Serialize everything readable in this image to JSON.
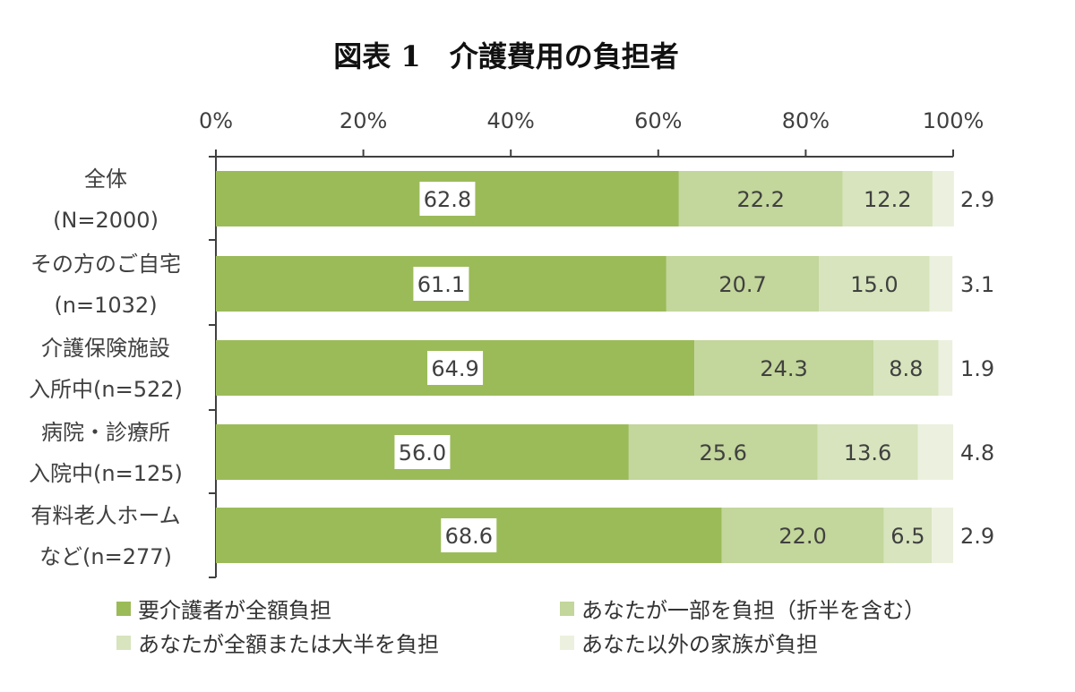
{
  "title": "図表 1　介護費用の負担者",
  "chart_data": {
    "type": "bar",
    "orientation": "horizontal",
    "stacked": true,
    "title": "図表 1　介護費用の負担者",
    "xlim": [
      0,
      100
    ],
    "x_ticks": [
      "0%",
      "20%",
      "40%",
      "60%",
      "80%",
      "100%"
    ],
    "x_tick_values": [
      0,
      20,
      40,
      60,
      80,
      100
    ],
    "x_axis_position": "top",
    "grid": false,
    "legend_position": "bottom",
    "categories": [
      {
        "line1": "全体",
        "line2": "(N=2000)"
      },
      {
        "line1": "その方のご自宅",
        "line2": "(n=1032)"
      },
      {
        "line1": "介護保険施設",
        "line2": "入所中(n=522)"
      },
      {
        "line1": "病院・診療所",
        "line2": "入院中(n=125)"
      },
      {
        "line1": "有料老人ホーム",
        "line2": "など(n=277)"
      }
    ],
    "series": [
      {
        "name": "要介護者が全額負担",
        "color": "#9bbb59",
        "values": [
          62.8,
          61.1,
          64.9,
          56.0,
          68.6
        ],
        "labels": [
          "62.8",
          "61.1",
          "64.9",
          "56.0",
          "68.6"
        ]
      },
      {
        "name": "あなたが一部を負担（折半を含む）",
        "color": "#c3d69b",
        "values": [
          22.2,
          20.7,
          24.3,
          25.6,
          22.0
        ],
        "labels": [
          "22.2",
          "20.7",
          "24.3",
          "25.6",
          "22.0"
        ]
      },
      {
        "name": "あなたが全額または大半を負担",
        "color": "#d7e4bd",
        "values": [
          12.2,
          15.0,
          8.8,
          13.6,
          6.5
        ],
        "labels": [
          "12.2",
          "15.0",
          "8.8",
          "13.6",
          "6.5"
        ]
      },
      {
        "name": "あなた以外の家族が負担",
        "color": "#ebf1de",
        "values": [
          2.9,
          3.1,
          1.9,
          4.8,
          2.9
        ],
        "labels": [
          "2.9",
          "3.1",
          "1.9",
          "4.8",
          "2.9"
        ]
      }
    ]
  }
}
